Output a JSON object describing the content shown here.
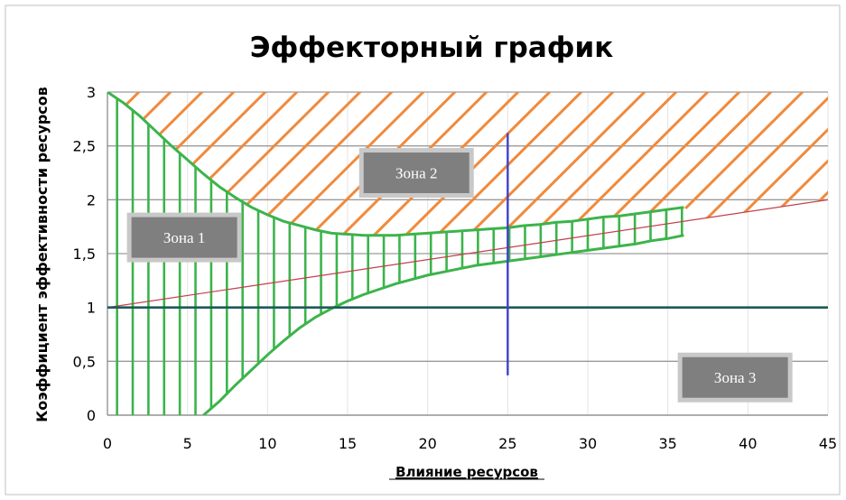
{
  "chart_data": {
    "type": "line",
    "title": "Эффекторный график",
    "xlabel": "Влияние ресурсов",
    "ylabel": "Коэффициент эффективности ресурсов",
    "xlim": [
      0,
      45
    ],
    "ylim": [
      0,
      3
    ],
    "x_ticks": [
      "0",
      "5",
      "10",
      "15",
      "20",
      "25",
      "30",
      "35",
      "40",
      "45"
    ],
    "y_ticks": [
      "0",
      "0,5",
      "1",
      "1,5",
      "2",
      "2,5",
      "3"
    ],
    "grid": {
      "horizontal": true,
      "vertical": true
    },
    "zones": [
      {
        "label": "Зона 1",
        "x": 4.8,
        "y": 1.65
      },
      {
        "label": "Зона 2",
        "x": 19.3,
        "y": 2.25
      },
      {
        "label": "Зона 3",
        "x": 39.2,
        "y": 0.35
      }
    ],
    "series": [
      {
        "style": "upper-curve",
        "color": "#3cb44b",
        "points": [
          [
            0,
            3
          ],
          [
            1,
            2.9
          ],
          [
            2,
            2.78
          ],
          [
            3,
            2.64
          ],
          [
            4,
            2.5
          ],
          [
            5,
            2.37
          ],
          [
            6,
            2.24
          ],
          [
            7,
            2.12
          ],
          [
            8,
            2.02
          ],
          [
            9,
            1.93
          ],
          [
            10,
            1.86
          ],
          [
            11,
            1.8
          ],
          [
            12,
            1.76
          ],
          [
            13,
            1.72
          ],
          [
            14,
            1.69
          ],
          [
            15,
            1.68
          ],
          [
            16,
            1.67
          ],
          [
            17,
            1.67
          ],
          [
            18,
            1.67
          ],
          [
            19,
            1.68
          ],
          [
            20,
            1.69
          ],
          [
            21,
            1.7
          ],
          [
            22,
            1.71
          ],
          [
            23,
            1.72
          ],
          [
            24,
            1.73
          ],
          [
            25,
            1.74
          ],
          [
            26,
            1.76
          ],
          [
            27,
            1.77
          ],
          [
            28,
            1.79
          ],
          [
            29,
            1.8
          ],
          [
            30,
            1.82
          ],
          [
            31,
            1.84
          ],
          [
            32,
            1.85
          ],
          [
            33,
            1.87
          ],
          [
            34,
            1.89
          ],
          [
            35,
            1.91
          ],
          [
            36,
            1.93
          ]
        ]
      },
      {
        "style": "lower-curve",
        "color": "#3cb44b",
        "points": [
          [
            6,
            0
          ],
          [
            7,
            0.13
          ],
          [
            8,
            0.28
          ],
          [
            9,
            0.42
          ],
          [
            10,
            0.56
          ],
          [
            11,
            0.69
          ],
          [
            12,
            0.81
          ],
          [
            13,
            0.91
          ],
          [
            14,
            0.99
          ],
          [
            15,
            1.06
          ],
          [
            16,
            1.12
          ],
          [
            17,
            1.17
          ],
          [
            18,
            1.22
          ],
          [
            19,
            1.26
          ],
          [
            20,
            1.3
          ],
          [
            21,
            1.33
          ],
          [
            22,
            1.36
          ],
          [
            23,
            1.39
          ],
          [
            24,
            1.41
          ],
          [
            25,
            1.43
          ],
          [
            26,
            1.45
          ],
          [
            27,
            1.47
          ],
          [
            28,
            1.49
          ],
          [
            29,
            1.51
          ],
          [
            30,
            1.53
          ],
          [
            31,
            1.55
          ],
          [
            32,
            1.57
          ],
          [
            33,
            1.59
          ],
          [
            34,
            1.62
          ],
          [
            35,
            1.64
          ],
          [
            36,
            1.67
          ]
        ]
      },
      {
        "style": "trend-line",
        "color": "#c0404a",
        "points": [
          [
            0,
            1
          ],
          [
            45,
            2
          ]
        ]
      },
      {
        "style": "level-line",
        "color": "#1f5a5a",
        "points": [
          [
            0,
            1
          ],
          [
            45,
            1
          ]
        ]
      },
      {
        "style": "marker-line",
        "color": "#4040c8",
        "points": [
          [
            25,
            0.37
          ],
          [
            25,
            2.62
          ]
        ]
      }
    ],
    "colors": {
      "hatch": "#f08a3c",
      "curve": "#3cb44b",
      "zone_box": "#7f7f7f",
      "zone_border": "#c8c8c8"
    }
  }
}
